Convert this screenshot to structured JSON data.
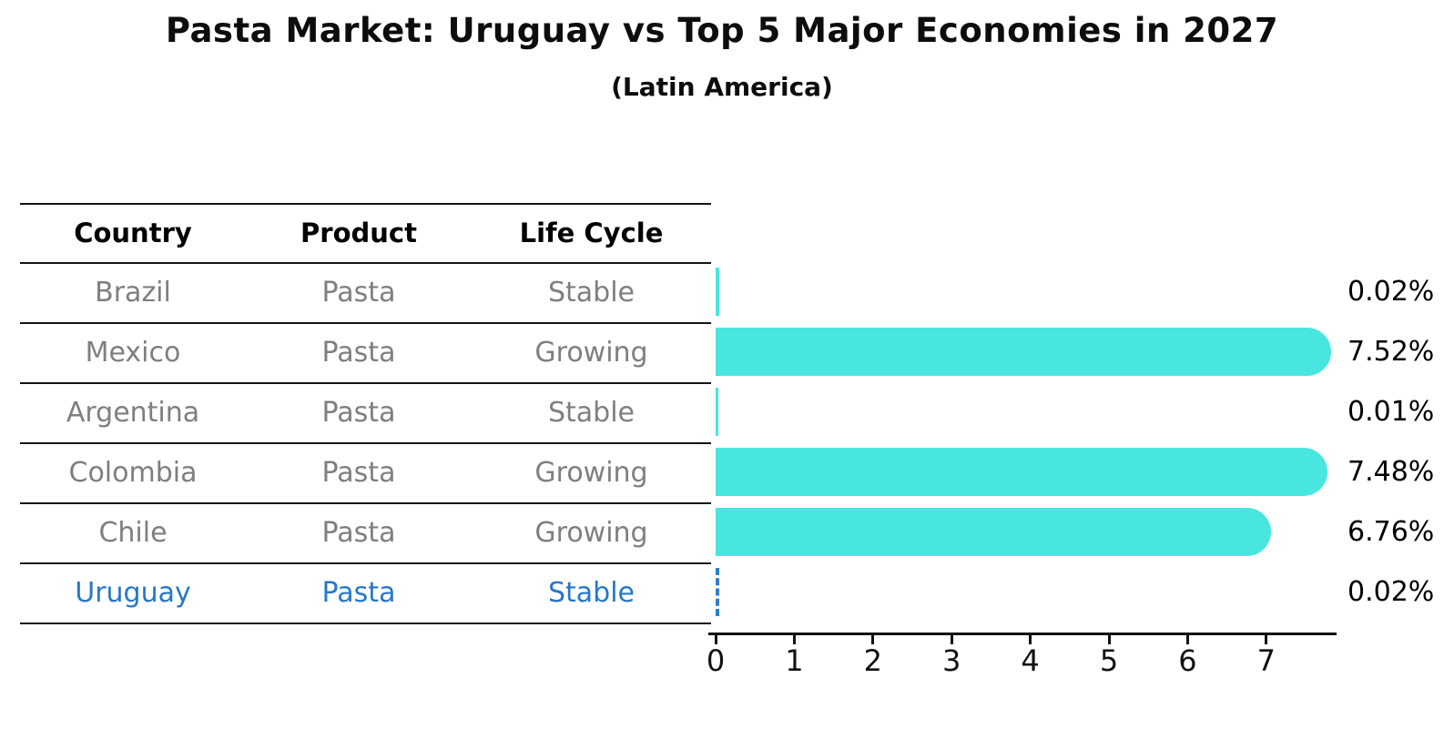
{
  "figure": {
    "title": "Pasta Market: Uruguay vs Top 5 Major Economies in 2027",
    "subtitle": "(Latin America)"
  },
  "table": {
    "headers": [
      "Country",
      "Product",
      "Life Cycle"
    ],
    "rows": [
      {
        "country": "Brazil",
        "product": "Pasta",
        "life_cycle": "Stable",
        "highlighted": false
      },
      {
        "country": "Mexico",
        "product": "Pasta",
        "life_cycle": "Growing",
        "highlighted": false
      },
      {
        "country": "Argentina",
        "product": "Pasta",
        "life_cycle": "Stable",
        "highlighted": false
      },
      {
        "country": "Colombia",
        "product": "Pasta",
        "life_cycle": "Growing",
        "highlighted": false
      },
      {
        "country": "Chile",
        "product": "Pasta",
        "life_cycle": "Growing",
        "highlighted": false
      },
      {
        "country": "Uruguay",
        "product": "Pasta",
        "life_cycle": "Stable",
        "highlighted": true
      }
    ]
  },
  "chart_data": {
    "type": "bar",
    "orientation": "horizontal",
    "title": "Pasta Market: Uruguay vs Top 5 Major Economies in 2027 (Latin America)",
    "categories": [
      "Brazil",
      "Mexico",
      "Argentina",
      "Colombia",
      "Chile",
      "Uruguay"
    ],
    "values": [
      0.02,
      7.52,
      0.01,
      7.48,
      6.76,
      0.02
    ],
    "value_labels": [
      "0.02%",
      "7.52%",
      "0.01%",
      "7.48%",
      "6.76%",
      "0.02%"
    ],
    "x_tick_labels": [
      "0",
      "1",
      "2",
      "3",
      "4",
      "5",
      "6",
      "7"
    ],
    "xlim": [
      0,
      7.9
    ],
    "grid": false,
    "legend": "none",
    "bar_color": "#48e6de",
    "highlight": {
      "index": 5,
      "style": "dashed-outline",
      "color": "#2e7fc6"
    }
  },
  "colors": {
    "bar_fill": "#48e6de",
    "highlight_blue": "#2778c7",
    "row_text_gray": "#7f7f7f",
    "heading_black": "#0d0d0d",
    "axis_black": "#111111"
  }
}
